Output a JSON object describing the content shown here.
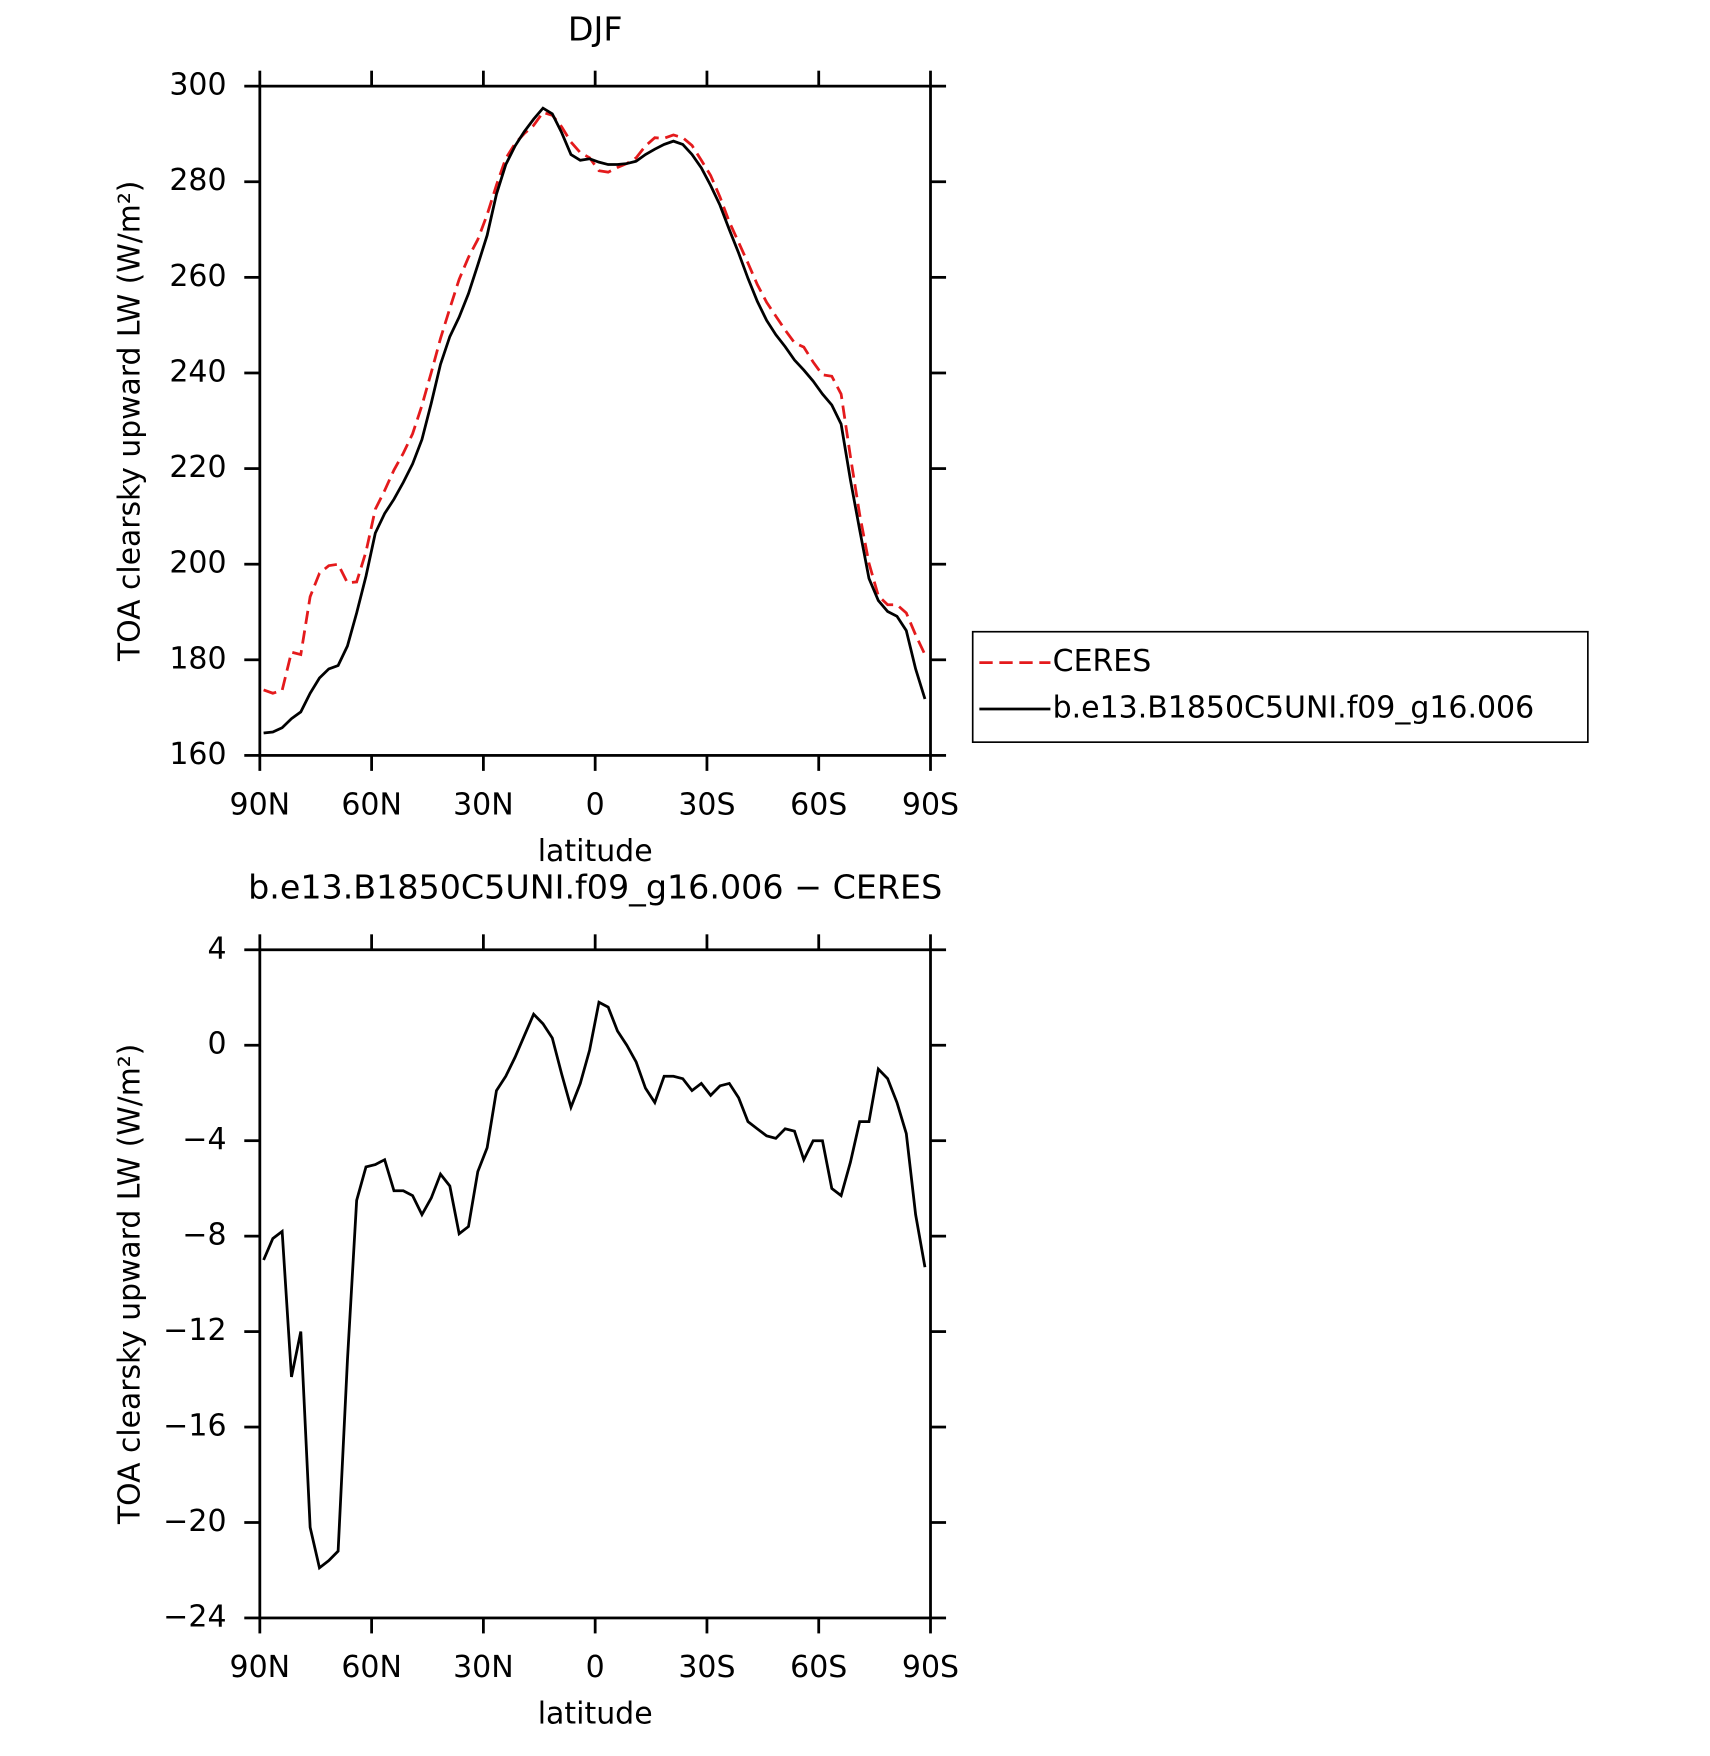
{
  "chart_data": [
    {
      "type": "line",
      "title": "DJF",
      "xlabel": "latitude",
      "ylabel": "TOA clearsky upward LW (W/m²)",
      "x": [
        89,
        86.5,
        84,
        81.5,
        79,
        76.5,
        74,
        71.5,
        69,
        66.5,
        64,
        61.5,
        59,
        56.5,
        54,
        51.5,
        49,
        46.5,
        44,
        41.5,
        39,
        36.5,
        34,
        31.5,
        29,
        26.5,
        24,
        21.5,
        19,
        16.5,
        14,
        11.5,
        9,
        6.5,
        4,
        1.5,
        -1,
        -3.5,
        -6,
        -8.5,
        -11,
        -13.5,
        -16,
        -18.5,
        -21,
        -23.5,
        -26,
        -28.5,
        -31,
        -33.5,
        -36,
        -38.5,
        -41,
        -43.5,
        -46,
        -48.5,
        -51,
        -53.5,
        -56,
        -58.5,
        -61,
        -63.5,
        -66,
        -68.5,
        -71,
        -73.5,
        -76,
        -78.5,
        -81,
        -83.5,
        -86,
        -88.5
      ],
      "series": [
        {
          "name": "CERES",
          "color": "#e41a1c",
          "dash": true,
          "values": [
            173.7,
            173.0,
            173.6,
            181.6,
            181.1,
            193.2,
            198.1,
            199.7,
            200.0,
            196.1,
            196.3,
            202.6,
            211.5,
            215.4,
            219.7,
            223.2,
            227.3,
            233.2,
            240.1,
            247.2,
            253.5,
            259.6,
            264.2,
            267.9,
            273.1,
            279.3,
            284.9,
            288.0,
            290.1,
            291.8,
            294.5,
            293.9,
            291.5,
            288.3,
            286.1,
            285.0,
            282.3,
            282.0,
            283.0,
            283.8,
            285.0,
            287.5,
            289.2,
            289.1,
            289.8,
            289.2,
            287.6,
            284.5,
            281.3,
            276.8,
            271.6,
            267.3,
            263.0,
            258.5,
            254.8,
            251.9,
            249.0,
            246.3,
            245.4,
            242.3,
            239.6,
            239.3,
            235.6,
            222.5,
            210.4,
            200.2,
            193.4,
            191.5,
            191.5,
            189.8,
            185.2,
            181.1
          ]
        },
        {
          "name": "b.e13.B1850C5UNI.f09_g16.006",
          "color": "#000000",
          "dash": false,
          "values": [
            164.7,
            164.9,
            165.8,
            167.7,
            169.1,
            173.0,
            176.2,
            178.1,
            178.8,
            182.9,
            189.8,
            197.5,
            206.5,
            210.6,
            213.6,
            217.1,
            221.0,
            226.1,
            233.7,
            241.8,
            247.6,
            251.7,
            256.6,
            262.6,
            268.8,
            277.4,
            283.6,
            287.5,
            290.5,
            293.1,
            295.4,
            294.2,
            290.3,
            285.7,
            284.5,
            284.8,
            284.1,
            283.6,
            283.6,
            283.8,
            284.3,
            285.7,
            286.8,
            287.8,
            288.5,
            287.8,
            285.7,
            282.9,
            279.2,
            275.1,
            270.0,
            265.1,
            259.8,
            255.0,
            251.0,
            248.0,
            245.5,
            242.7,
            240.6,
            238.3,
            235.6,
            233.3,
            229.3,
            217.6,
            207.2,
            197.0,
            192.4,
            190.1,
            189.1,
            186.1,
            178.1,
            171.8
          ]
        }
      ],
      "xlim": [
        90,
        -90
      ],
      "xticks": [
        {
          "value": 90,
          "label": "90N"
        },
        {
          "value": 60,
          "label": "60N"
        },
        {
          "value": 30,
          "label": "30N"
        },
        0,
        {
          "value": -30,
          "label": "30S"
        },
        {
          "value": -60,
          "label": "60S"
        },
        {
          "value": -90,
          "label": "90S"
        }
      ],
      "ylim": [
        160,
        300
      ],
      "yticks": [
        160,
        180,
        200,
        220,
        240,
        260,
        280,
        300
      ],
      "legend": "right"
    },
    {
      "type": "line",
      "title": "b.e13.B1850C5UNI.f09_g16.006 − CERES",
      "xlabel": "latitude",
      "ylabel": "TOA clearsky upward LW (W/m²)",
      "x": [
        89,
        86.5,
        84,
        81.5,
        79,
        76.5,
        74,
        71.5,
        69,
        66.5,
        64,
        61.5,
        59,
        56.5,
        54,
        51.5,
        49,
        46.5,
        44,
        41.5,
        39,
        36.5,
        34,
        31.5,
        29,
        26.5,
        24,
        21.5,
        19,
        16.5,
        14,
        11.5,
        9,
        6.5,
        4,
        1.5,
        -1,
        -3.5,
        -6,
        -8.5,
        -11,
        -13.5,
        -16,
        -18.5,
        -21,
        -23.5,
        -26,
        -28.5,
        -31,
        -33.5,
        -36,
        -38.5,
        -41,
        -43.5,
        -46,
        -48.5,
        -51,
        -53.5,
        -56,
        -58.5,
        -61,
        -63.5,
        -66,
        -68.5,
        -71,
        -73.5,
        -76,
        -78.5,
        -81,
        -83.5,
        -86,
        -88.5
      ],
      "color": "#000000",
      "values": [
        -9.0,
        -8.1,
        -7.8,
        -13.9,
        -12.0,
        -20.2,
        -21.9,
        -21.6,
        -21.2,
        -13.2,
        -6.5,
        -5.1,
        -5.0,
        -4.8,
        -6.1,
        -6.1,
        -6.3,
        -7.1,
        -6.4,
        -5.4,
        -5.9,
        -7.9,
        -7.6,
        -5.3,
        -4.3,
        -1.9,
        -1.3,
        -0.5,
        0.4,
        1.3,
        0.9,
        0.3,
        -1.2,
        -2.6,
        -1.6,
        -0.2,
        1.8,
        1.6,
        0.6,
        0.0,
        -0.7,
        -1.8,
        -2.4,
        -1.3,
        -1.3,
        -1.4,
        -1.9,
        -1.6,
        -2.1,
        -1.7,
        -1.6,
        -2.2,
        -3.2,
        -3.5,
        -3.8,
        -3.9,
        -3.5,
        -3.6,
        -4.8,
        -4.0,
        -4.0,
        -6.0,
        -6.3,
        -4.9,
        -3.2,
        -3.2,
        -1.0,
        -1.4,
        -2.4,
        -3.7,
        -7.1,
        -9.3
      ],
      "xlim": [
        90,
        -90
      ],
      "xticks": [
        {
          "value": 90,
          "label": "90N"
        },
        {
          "value": 60,
          "label": "60N"
        },
        {
          "value": 30,
          "label": "30N"
        },
        0,
        {
          "value": -30,
          "label": "30S"
        },
        {
          "value": -60,
          "label": "60S"
        },
        {
          "value": -90,
          "label": "90S"
        }
      ],
      "ylim": [
        -24,
        4
      ],
      "yticks": [
        {
          "value": -24,
          "label": "−24"
        },
        {
          "value": -20,
          "label": "−20"
        },
        {
          "value": -16,
          "label": "−16"
        },
        {
          "value": -12,
          "label": "−12"
        },
        {
          "value": -8,
          "label": "−8"
        },
        {
          "value": -4,
          "label": "−4"
        },
        0,
        4
      ]
    }
  ]
}
